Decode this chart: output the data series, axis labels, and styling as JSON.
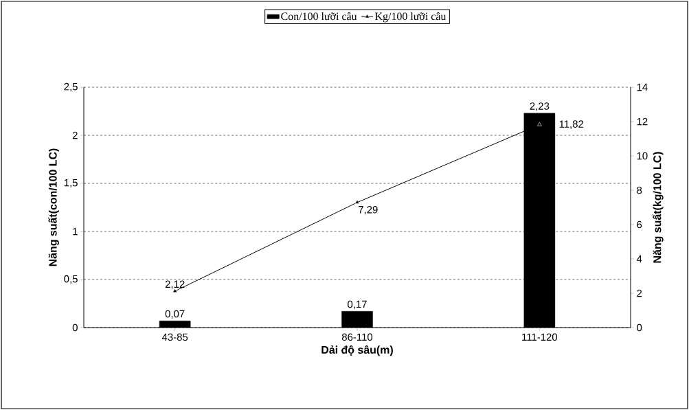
{
  "chart_data": {
    "type": "bar",
    "categories": [
      "43-85",
      "86-110",
      "111-120"
    ],
    "xlabel": "Dải độ sâu(m)",
    "ylabel": "Năng suất(con/100 LC)",
    "y2label": "Năng suất(kg/100 LC)",
    "series": [
      {
        "name": "Con/100 lưỡi câu",
        "color": "#000000",
        "values": [
          0.07,
          0.17,
          2.23
        ],
        "value_labels": [
          "0,07",
          "0,17",
          "2,23"
        ]
      },
      {
        "name": "Kg/100 lưỡi câu",
        "type": "line",
        "axis": "y2",
        "color": "#000000",
        "values": [
          2.12,
          7.29,
          11.82
        ],
        "value_labels": [
          "2,12",
          "7,29",
          "11,82"
        ],
        "marker": "triangle",
        "line_style": "solid"
      }
    ],
    "ylim": [
      0,
      2.5
    ],
    "yticks": [
      0,
      {
        "value": 0.5,
        "label": "0,5"
      },
      1,
      {
        "value": 1.5,
        "label": "1,5"
      },
      2,
      {
        "value": 2.5,
        "label": "2,5"
      }
    ],
    "y2lim": [
      0,
      14
    ],
    "y2ticks": [
      0,
      2,
      4,
      6,
      8,
      10,
      12,
      14
    ],
    "grid": "y",
    "legend": "top"
  }
}
